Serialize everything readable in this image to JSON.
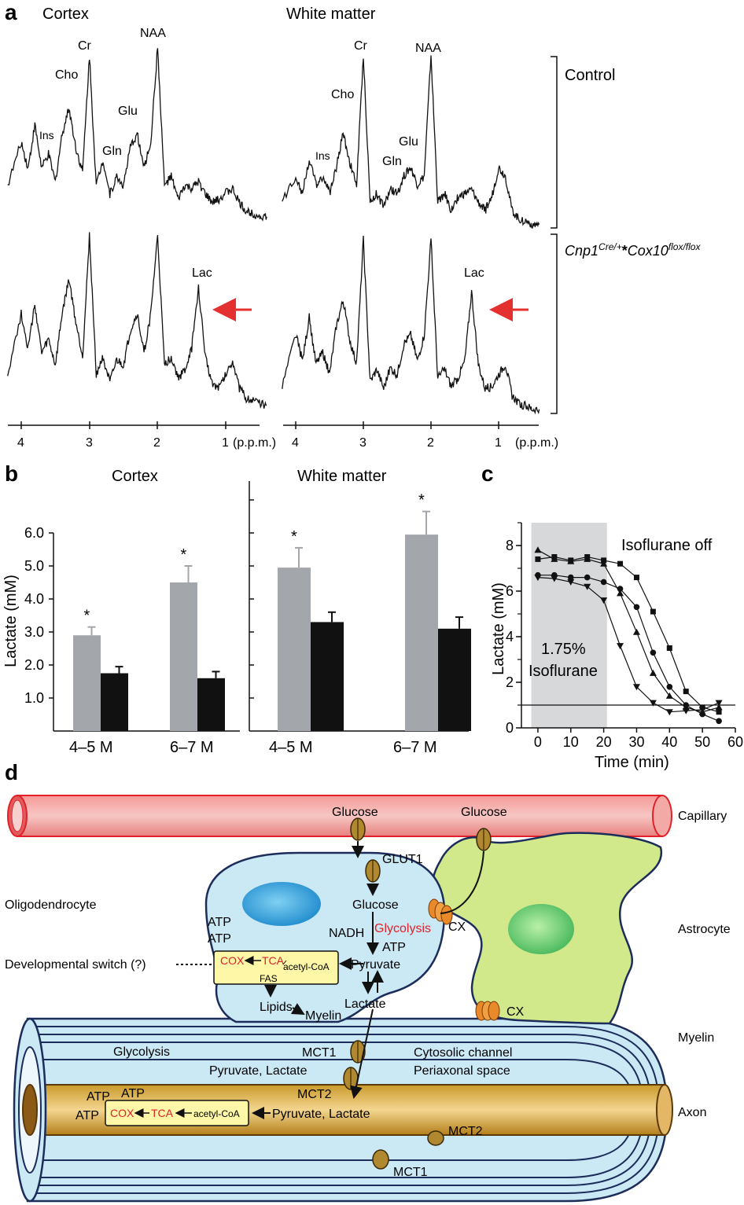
{
  "panels": {
    "a": {
      "letter": "a",
      "left_title": "Cortex",
      "right_title": "White matter",
      "control_label": "Control",
      "mutant_label_parts": [
        "Cnp1",
        "Cre/+",
        "*",
        "Cox10",
        "flox/flox"
      ],
      "peaks_left_control": [
        "Cr",
        "NAA",
        "Cho",
        "Ins",
        "Glu",
        "Gln"
      ],
      "peaks_right_control": [
        "Cr",
        "NAA",
        "Cho",
        "Ins",
        "Glu",
        "Gln"
      ],
      "peaks_mutant": [
        "Lac",
        "Lac"
      ],
      "ticks": [
        "4",
        "3",
        "2",
        "1"
      ],
      "unit": "(p.p.m.)"
    },
    "b": {
      "letter": "b",
      "left_title": "Cortex",
      "right_title": "White matter",
      "ylabel": "Lactate (mM)",
      "yticks": [
        "1.0",
        "2.0",
        "3.0",
        "4.0",
        "5.0",
        "6.0"
      ],
      "xcats": [
        "4–5 M",
        "6–7 M"
      ],
      "star": "*"
    },
    "c": {
      "letter": "c",
      "ylabel": "Lactate (mM)",
      "xlabel": "Time (min)",
      "shaded_label_line1": "1.75%",
      "shaded_label_line2": "Isoflurane",
      "annotation": "Isoflurane off",
      "xticks": [
        "0",
        "10",
        "20",
        "30",
        "40",
        "50",
        "60"
      ],
      "yticks": [
        "0",
        "2",
        "4",
        "6",
        "8"
      ]
    },
    "d": {
      "letter": "d",
      "capillary": "Capillary",
      "oligodendrocyte": "Oligodendrocyte",
      "astrocyte": "Astrocyte",
      "myelin": "Myelin",
      "axon": "Axon",
      "dev_switch": "Developmental switch (?)",
      "glucose_1": "Glucose",
      "glucose_2": "Glucose",
      "glut1": "GLUT1",
      "glucose_3": "Glucose",
      "nadh": "NADH",
      "glycolysis_red": "Glycolysis",
      "atp_1": "ATP",
      "cx_1": "CX",
      "cx_2": "CX",
      "atp_left_1": "ATP",
      "atp_left_2": "ATP",
      "pyruvate": "Pyruvate",
      "cox": "COX",
      "tca": "TCA",
      "acetyl": "acetyl-CoA",
      "fas": "FAS",
      "lipids": "Lipids",
      "myelin_small": "Myelin",
      "lactate": "Lactate",
      "glycolysis_black": "Glycolysis",
      "pyruvate_lactate_1": "Pyruvate, Lactate",
      "mct1_1": "MCT1",
      "cytosolic": "Cytosolic channel",
      "periaxonal": "Periaxonal space",
      "mct2_1": "MCT2",
      "atp_ax_1": "ATP",
      "atp_ax_2": "ATP",
      "atp_ax_3": "ATP",
      "cox_ax": "COX",
      "tca_ax": "TCA",
      "acetyl_ax": "acetyl-CoA",
      "pyruvate_lactate_2": "Pyruvate, Lactate",
      "mct2_2": "MCT2",
      "mct1_2": "MCT1"
    }
  },
  "chart_data": [
    {
      "type": "line",
      "title": "Cortex",
      "xlabel": "",
      "ylabel": "",
      "x_ticks": [
        4,
        3,
        2,
        1
      ],
      "x_unit": "p.p.m.",
      "series": [
        {
          "name": "Control",
          "x": [
            4.2,
            4.0,
            3.9,
            3.8,
            3.7,
            3.6,
            3.5,
            3.4,
            3.3,
            3.2,
            3.1,
            3.0,
            2.9,
            2.8,
            2.7,
            2.6,
            2.5,
            2.4,
            2.3,
            2.2,
            2.1,
            2.0,
            1.9,
            1.8,
            1.7,
            1.6,
            1.5,
            1.4,
            1.3,
            1.2,
            1.1,
            1.0,
            0.9,
            0.8,
            0.7,
            0.6,
            0.5,
            0.4
          ],
          "y": [
            0.2,
            0.45,
            0.3,
            0.55,
            0.3,
            0.38,
            0.22,
            0.5,
            0.65,
            0.42,
            0.28,
            0.95,
            0.2,
            0.35,
            0.15,
            0.25,
            0.2,
            0.42,
            0.5,
            0.3,
            0.45,
            1.0,
            0.2,
            0.25,
            0.12,
            0.2,
            0.18,
            0.22,
            0.15,
            0.1,
            0.12,
            0.16,
            0.18,
            0.1,
            0.05,
            0.04,
            0.02,
            0.02
          ]
        },
        {
          "name": "Cnp1Cre/+*Cox10flox/flox",
          "x": [
            4.2,
            4.0,
            3.9,
            3.8,
            3.7,
            3.6,
            3.5,
            3.4,
            3.3,
            3.2,
            3.1,
            3.0,
            2.9,
            2.8,
            2.7,
            2.6,
            2.5,
            2.4,
            2.3,
            2.2,
            2.1,
            2.0,
            1.9,
            1.8,
            1.7,
            1.6,
            1.5,
            1.4,
            1.3,
            1.2,
            1.1,
            1.0,
            0.9,
            0.8,
            0.7,
            0.6,
            0.5,
            0.4
          ],
          "y": [
            0.2,
            0.55,
            0.35,
            0.6,
            0.32,
            0.4,
            0.25,
            0.55,
            0.75,
            0.5,
            0.3,
            1.0,
            0.2,
            0.3,
            0.15,
            0.28,
            0.25,
            0.45,
            0.55,
            0.32,
            0.55,
            1.0,
            0.25,
            0.3,
            0.18,
            0.22,
            0.35,
            0.7,
            0.3,
            0.15,
            0.12,
            0.2,
            0.28,
            0.12,
            0.06,
            0.05,
            0.03,
            0.02
          ]
        }
      ]
    },
    {
      "type": "line",
      "title": "White matter",
      "xlabel": "",
      "ylabel": "",
      "x_ticks": [
        4,
        3,
        2,
        1
      ],
      "x_unit": "p.p.m.",
      "series": [
        {
          "name": "Control",
          "x": [
            4.2,
            4.0,
            3.9,
            3.8,
            3.7,
            3.6,
            3.5,
            3.4,
            3.3,
            3.2,
            3.1,
            3.0,
            2.9,
            2.8,
            2.7,
            2.6,
            2.5,
            2.4,
            2.3,
            2.2,
            2.1,
            2.0,
            1.9,
            1.8,
            1.7,
            1.6,
            1.5,
            1.4,
            1.3,
            1.2,
            1.1,
            1.0,
            0.9,
            0.8,
            0.7,
            0.6,
            0.5,
            0.4
          ],
          "y": [
            0.15,
            0.3,
            0.2,
            0.4,
            0.25,
            0.3,
            0.2,
            0.35,
            0.55,
            0.38,
            0.25,
            1.0,
            0.15,
            0.2,
            0.12,
            0.22,
            0.2,
            0.3,
            0.35,
            0.25,
            0.3,
            1.0,
            0.15,
            0.2,
            0.1,
            0.18,
            0.2,
            0.22,
            0.15,
            0.1,
            0.18,
            0.35,
            0.3,
            0.1,
            0.05,
            0.04,
            0.02,
            0.02
          ]
        },
        {
          "name": "Cnp1Cre/+*Cox10flox/flox",
          "x": [
            4.2,
            4.0,
            3.9,
            3.8,
            3.7,
            3.6,
            3.5,
            3.4,
            3.3,
            3.2,
            3.1,
            3.0,
            2.9,
            2.8,
            2.7,
            2.6,
            2.5,
            2.4,
            2.3,
            2.2,
            2.1,
            2.0,
            1.9,
            1.8,
            1.7,
            1.6,
            1.5,
            1.4,
            1.3,
            1.2,
            1.1,
            1.0,
            0.9,
            0.8,
            0.7,
            0.6,
            0.5,
            0.4
          ],
          "y": [
            0.15,
            0.45,
            0.3,
            0.55,
            0.28,
            0.35,
            0.22,
            0.5,
            0.65,
            0.42,
            0.28,
            1.0,
            0.18,
            0.25,
            0.14,
            0.26,
            0.22,
            0.4,
            0.45,
            0.3,
            0.45,
            1.0,
            0.2,
            0.25,
            0.15,
            0.2,
            0.3,
            0.7,
            0.28,
            0.14,
            0.15,
            0.22,
            0.28,
            0.1,
            0.05,
            0.04,
            0.02,
            0.02
          ]
        }
      ]
    },
    {
      "type": "bar",
      "title": "Cortex",
      "xlabel": "",
      "ylabel": "Lactate (mM)",
      "ylim": [
        0,
        7
      ],
      "categories": [
        "4–5 M",
        "6–7 M"
      ],
      "series": [
        {
          "name": "",
          "color": "#a3a6ab",
          "values": [
            2.9,
            4.5
          ],
          "errors": [
            0.25,
            0.5
          ]
        },
        {
          "name": "",
          "color": "#111111",
          "values": [
            1.75,
            1.6
          ],
          "errors": [
            0.2,
            0.2
          ]
        }
      ]
    },
    {
      "type": "bar",
      "title": "White matter",
      "xlabel": "",
      "ylabel": "",
      "ylim": [
        0,
        7
      ],
      "categories": [
        "4–5 M",
        "6–7 M"
      ],
      "series": [
        {
          "name": "",
          "color": "#a3a6ab",
          "values": [
            4.95,
            5.95
          ],
          "errors": [
            0.6,
            0.7
          ]
        },
        {
          "name": "",
          "color": "#111111",
          "values": [
            3.3,
            3.1
          ],
          "errors": [
            0.3,
            0.35
          ]
        }
      ]
    },
    {
      "type": "line",
      "title": "",
      "xlabel": "Time (min)",
      "ylabel": "Lactate (mM)",
      "xlim": [
        -5,
        60
      ],
      "ylim": [
        0,
        9
      ],
      "shaded_x_range": [
        -2,
        21
      ],
      "reference_y": 1.0,
      "series": [
        {
          "marker": "square",
          "x": [
            0,
            5,
            10,
            15,
            20,
            25,
            30,
            35,
            40,
            45,
            50,
            55
          ],
          "y": [
            7.4,
            7.5,
            7.35,
            7.5,
            7.35,
            7.2,
            6.6,
            5.1,
            3.5,
            1.6,
            0.9,
            0.7
          ]
        },
        {
          "marker": "triangle-up",
          "x": [
            0,
            5,
            10,
            15,
            20,
            25,
            30,
            35,
            40,
            45,
            50,
            55
          ],
          "y": [
            7.8,
            7.4,
            7.3,
            7.4,
            7.2,
            5.9,
            4.2,
            2.4,
            1.4,
            0.9,
            0.7,
            0.9
          ]
        },
        {
          "marker": "circle",
          "x": [
            0,
            5,
            10,
            15,
            20,
            25,
            30,
            35,
            40,
            45,
            50,
            55
          ],
          "y": [
            6.7,
            6.7,
            6.6,
            6.6,
            6.4,
            6.1,
            5.3,
            3.3,
            1.8,
            1.0,
            0.6,
            0.3
          ]
        },
        {
          "marker": "triangle-down",
          "x": [
            0,
            5,
            10,
            15,
            20,
            25,
            30,
            35,
            40,
            45,
            50,
            55
          ],
          "y": [
            6.6,
            6.55,
            6.4,
            6.2,
            5.6,
            3.6,
            1.8,
            1.1,
            0.7,
            0.75,
            0.8,
            1.1
          ]
        }
      ]
    }
  ]
}
